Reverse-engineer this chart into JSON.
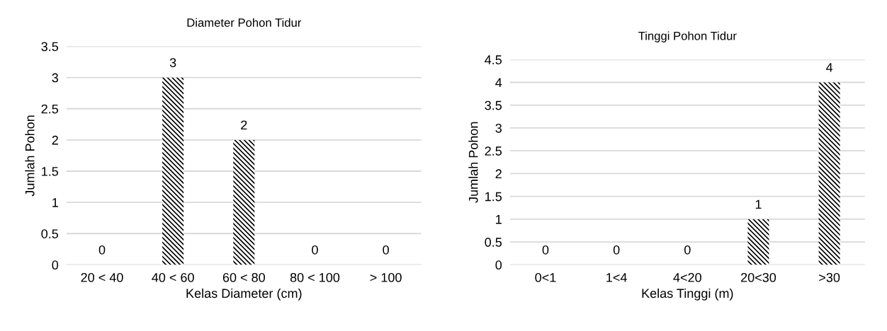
{
  "chart_data": [
    {
      "type": "bar",
      "title": "Diameter Pohon Tidur",
      "xlabel": "Kelas Diameter (cm)",
      "ylabel": "Jumlah Pohon",
      "categories": [
        "20 < 40",
        "40 < 60",
        "60 < 80",
        "80 < 100",
        "> 100"
      ],
      "values": [
        0,
        3,
        2,
        0,
        0
      ],
      "color": "#000000",
      "ylim": [
        0,
        3.5
      ],
      "yticks": [
        0,
        0.5,
        1,
        1.5,
        2,
        2.5,
        3,
        3.5
      ],
      "grid": "y",
      "data_labels": true
    },
    {
      "type": "bar",
      "title": "Tinggi Pohon Tidur",
      "xlabel": "Kelas Tinggi (m)",
      "ylabel": "Jumlah Pohon",
      "categories": [
        "0<1",
        "1<4",
        "4<20",
        "20<30",
        ">30"
      ],
      "values": [
        0,
        0,
        0,
        1,
        4
      ],
      "color": "#000000",
      "ylim": [
        0,
        4.5
      ],
      "yticks": [
        0,
        0.5,
        1,
        1.5,
        2,
        2.5,
        3,
        3.5,
        4,
        4.5
      ],
      "grid": "y",
      "data_labels": true
    }
  ]
}
